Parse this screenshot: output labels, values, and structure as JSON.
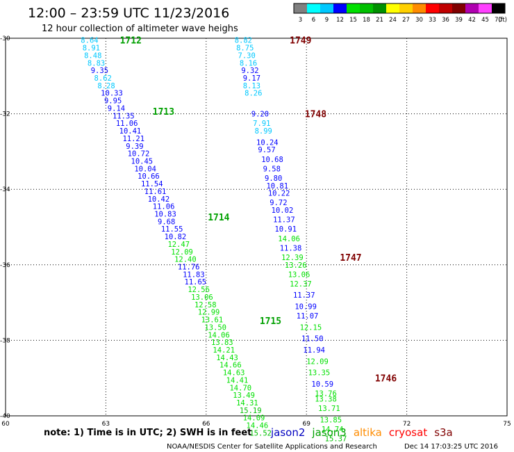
{
  "header": {
    "title": "12:00 – 23:59 UTC 11/23/2016",
    "subtitle": "12 hour collection of altimeter wave heighs"
  },
  "legend": {
    "unit": "(ft)",
    "bins": [
      {
        "label": "3",
        "color": "#808080"
      },
      {
        "label": "6",
        "color": "#00ffff"
      },
      {
        "label": "9",
        "color": "#00c8ff"
      },
      {
        "label": "12",
        "color": "#0000ff"
      },
      {
        "label": "15",
        "color": "#00e000"
      },
      {
        "label": "18",
        "color": "#00c000"
      },
      {
        "label": "21",
        "color": "#009000"
      },
      {
        "label": "24",
        "color": "#ffff00"
      },
      {
        "label": "27",
        "color": "#ffd000"
      },
      {
        "label": "30",
        "color": "#ff8c00"
      },
      {
        "label": "33",
        "color": "#ff0000"
      },
      {
        "label": "36",
        "color": "#c00000"
      },
      {
        "label": "39",
        "color": "#800000"
      },
      {
        "label": "42",
        "color": "#b000b0"
      },
      {
        "label": "45",
        "color": "#ff40ff"
      },
      {
        "label": "70",
        "color": "#000000"
      }
    ]
  },
  "axes": {
    "lat_ticks": [
      "-30",
      "-32",
      "-34",
      "-36",
      "-38",
      "-40"
    ],
    "lon_ticks": [
      "60",
      "63",
      "66",
      "69",
      "72",
      "75"
    ]
  },
  "footer": {
    "note": "note:  1) Time is in UTC;  2) SWH is in feet",
    "satellites": [
      {
        "name": "jason2",
        "color": "#0000c0"
      },
      {
        "name": "jason3",
        "color": "#00a000"
      },
      {
        "name": "altika",
        "color": "#ff8c00"
      },
      {
        "name": "cryosat",
        "color": "#ff0000"
      },
      {
        "name": "s3a",
        "color": "#800000"
      }
    ],
    "credit": "NOAA/NESDIS Center for Satellite Applications and Research",
    "timestamp": "Dec 14 17:03:25 UTC 2016"
  },
  "passes": [
    {
      "time": "1712",
      "color": "#00a000",
      "lat": -30.05,
      "lon": 63.42
    },
    {
      "time": "1713",
      "color": "#00a000",
      "lat": -31.93,
      "lon": 64.4
    },
    {
      "time": "1714",
      "color": "#00a000",
      "lat": -34.73,
      "lon": 66.05
    },
    {
      "time": "1715",
      "color": "#00a000",
      "lat": -37.48,
      "lon": 67.6
    },
    {
      "time": "1749",
      "color": "#800000",
      "lat": -30.05,
      "lon": 68.5
    },
    {
      "time": "1748",
      "color": "#800000",
      "lat": -32.0,
      "lon": 68.95
    },
    {
      "time": "1747",
      "color": "#800000",
      "lat": -35.8,
      "lon": 70.0
    },
    {
      "time": "1746",
      "color": "#800000",
      "lat": -39.0,
      "lon": 71.05
    }
  ],
  "tracks": [
    {
      "id": "track-west",
      "points": [
        {
          "lat": -30.05,
          "lon": 62.25,
          "swh": "8.64"
        },
        {
          "lat": -30.25,
          "lon": 62.3,
          "swh": "8.91"
        },
        {
          "lat": -30.45,
          "lon": 62.35,
          "swh": "8.48"
        },
        {
          "lat": -30.65,
          "lon": 62.45,
          "swh": "8.83"
        },
        {
          "lat": -30.85,
          "lon": 62.55,
          "swh": "9.35"
        },
        {
          "lat": -31.05,
          "lon": 62.65,
          "swh": "8.62"
        },
        {
          "lat": -31.25,
          "lon": 62.75,
          "swh": "8.28"
        },
        {
          "lat": -31.45,
          "lon": 62.85,
          "swh": "10.33"
        },
        {
          "lat": -31.65,
          "lon": 62.95,
          "swh": "9.95"
        },
        {
          "lat": -31.85,
          "lon": 63.05,
          "swh": "9.14"
        },
        {
          "lat": -32.05,
          "lon": 63.2,
          "swh": "11.35"
        },
        {
          "lat": -32.25,
          "lon": 63.3,
          "swh": "11.06"
        },
        {
          "lat": -32.45,
          "lon": 63.4,
          "swh": "10.41"
        },
        {
          "lat": -32.65,
          "lon": 63.5,
          "swh": "11.21"
        },
        {
          "lat": -32.85,
          "lon": 63.6,
          "swh": "9.39"
        },
        {
          "lat": -33.05,
          "lon": 63.65,
          "swh": "10.72"
        },
        {
          "lat": -33.25,
          "lon": 63.75,
          "swh": "10.45"
        },
        {
          "lat": -33.45,
          "lon": 63.85,
          "swh": "10.04"
        },
        {
          "lat": -33.65,
          "lon": 63.95,
          "swh": "10.66"
        },
        {
          "lat": -33.85,
          "lon": 64.05,
          "swh": "11.54"
        },
        {
          "lat": -34.05,
          "lon": 64.15,
          "swh": "11.61"
        },
        {
          "lat": -34.25,
          "lon": 64.25,
          "swh": "10.42"
        },
        {
          "lat": -34.45,
          "lon": 64.4,
          "swh": "11.06"
        },
        {
          "lat": -34.65,
          "lon": 64.45,
          "swh": "10.83"
        },
        {
          "lat": -34.85,
          "lon": 64.55,
          "swh": "9.68"
        },
        {
          "lat": -35.05,
          "lon": 64.65,
          "swh": "11.55"
        },
        {
          "lat": -35.25,
          "lon": 64.75,
          "swh": "10.82"
        },
        {
          "lat": -35.45,
          "lon": 64.85,
          "swh": "12.47"
        },
        {
          "lat": -35.65,
          "lon": 64.95,
          "swh": "12.09"
        },
        {
          "lat": -35.85,
          "lon": 65.05,
          "swh": "12.40"
        },
        {
          "lat": -36.05,
          "lon": 65.15,
          "swh": "11.76"
        },
        {
          "lat": -36.25,
          "lon": 65.3,
          "swh": "11.83"
        },
        {
          "lat": -36.45,
          "lon": 65.35,
          "swh": "11.65"
        },
        {
          "lat": -36.65,
          "lon": 65.45,
          "swh": "12.56"
        },
        {
          "lat": -36.85,
          "lon": 65.55,
          "swh": "13.06"
        },
        {
          "lat": -37.05,
          "lon": 65.65,
          "swh": "12.58"
        },
        {
          "lat": -37.25,
          "lon": 65.75,
          "swh": "12.99"
        },
        {
          "lat": -37.45,
          "lon": 65.85,
          "swh": "13.61"
        },
        {
          "lat": -37.65,
          "lon": 65.95,
          "swh": "13.50"
        },
        {
          "lat": -37.85,
          "lon": 66.05,
          "swh": "14.06"
        },
        {
          "lat": -38.05,
          "lon": 66.15,
          "swh": "13.83"
        },
        {
          "lat": -38.25,
          "lon": 66.2,
          "swh": "14.21"
        },
        {
          "lat": -38.45,
          "lon": 66.3,
          "swh": "14.43"
        },
        {
          "lat": -38.65,
          "lon": 66.4,
          "swh": "14.66"
        },
        {
          "lat": -38.85,
          "lon": 66.5,
          "swh": "14.63"
        },
        {
          "lat": -39.05,
          "lon": 66.6,
          "swh": "14.41"
        },
        {
          "lat": -39.25,
          "lon": 66.7,
          "swh": "14.70"
        },
        {
          "lat": -39.45,
          "lon": 66.8,
          "swh": "13.49"
        },
        {
          "lat": -39.65,
          "lon": 66.9,
          "swh": "14.31"
        },
        {
          "lat": -39.85,
          "lon": 67.0,
          "swh": "15.19"
        },
        {
          "lat": -40.05,
          "lon": 67.1,
          "swh": "14.09"
        },
        {
          "lat": -40.25,
          "lon": 67.2,
          "swh": "14.46"
        },
        {
          "lat": -40.45,
          "lon": 67.3,
          "swh": "15.52"
        }
      ]
    },
    {
      "id": "track-east",
      "points": [
        {
          "lat": -30.05,
          "lon": 66.85,
          "swh": "8.82"
        },
        {
          "lat": -30.25,
          "lon": 66.9,
          "swh": "8.75"
        },
        {
          "lat": -30.45,
          "lon": 66.95,
          "swh": "7.30"
        },
        {
          "lat": -30.65,
          "lon": 67.0,
          "swh": "8.16"
        },
        {
          "lat": -30.85,
          "lon": 67.05,
          "swh": "9.32"
        },
        {
          "lat": -31.05,
          "lon": 67.1,
          "swh": "9.17"
        },
        {
          "lat": -31.25,
          "lon": 67.1,
          "swh": "8.13"
        },
        {
          "lat": -31.45,
          "lon": 67.15,
          "swh": "8.26"
        },
        {
          "lat": -32.0,
          "lon": 67.35,
          "swh": "9.20"
        },
        {
          "lat": -32.25,
          "lon": 67.4,
          "swh": "7.91"
        },
        {
          "lat": -32.45,
          "lon": 67.45,
          "swh": "8.99"
        },
        {
          "lat": -32.75,
          "lon": 67.5,
          "swh": "10.24"
        },
        {
          "lat": -32.95,
          "lon": 67.55,
          "swh": "9.57"
        },
        {
          "lat": -33.2,
          "lon": 67.65,
          "swh": "10.68"
        },
        {
          "lat": -33.45,
          "lon": 67.7,
          "swh": "9.58"
        },
        {
          "lat": -33.7,
          "lon": 67.75,
          "swh": "9.80"
        },
        {
          "lat": -33.9,
          "lon": 67.8,
          "swh": "10.81"
        },
        {
          "lat": -34.1,
          "lon": 67.85,
          "swh": "10.22"
        },
        {
          "lat": -34.35,
          "lon": 67.9,
          "swh": "9.72"
        },
        {
          "lat": -34.55,
          "lon": 67.95,
          "swh": "10.02"
        },
        {
          "lat": -34.8,
          "lon": 68.0,
          "swh": "11.37"
        },
        {
          "lat": -35.05,
          "lon": 68.05,
          "swh": "10.91"
        },
        {
          "lat": -35.3,
          "lon": 68.15,
          "swh": "14.06"
        },
        {
          "lat": -35.55,
          "lon": 68.2,
          "swh": "11.38"
        },
        {
          "lat": -35.8,
          "lon": 68.25,
          "swh": "12.39"
        },
        {
          "lat": -36.0,
          "lon": 68.35,
          "swh": "13.26"
        },
        {
          "lat": -36.25,
          "lon": 68.45,
          "swh": "13.06"
        },
        {
          "lat": -36.5,
          "lon": 68.5,
          "swh": "12.37"
        },
        {
          "lat": -36.8,
          "lon": 68.6,
          "swh": "11.37"
        },
        {
          "lat": -37.1,
          "lon": 68.65,
          "swh": "10.99"
        },
        {
          "lat": -37.35,
          "lon": 68.7,
          "swh": "11.07"
        },
        {
          "lat": -37.65,
          "lon": 68.8,
          "swh": "12.15"
        },
        {
          "lat": -37.95,
          "lon": 68.85,
          "swh": "11.50"
        },
        {
          "lat": -38.25,
          "lon": 68.9,
          "swh": "11.94"
        },
        {
          "lat": -38.55,
          "lon": 69.0,
          "swh": "12.09"
        },
        {
          "lat": -38.85,
          "lon": 69.05,
          "swh": "13.35"
        },
        {
          "lat": -39.15,
          "lon": 69.15,
          "swh": "10.59"
        },
        {
          "lat": -39.4,
          "lon": 69.25,
          "swh": "13.76"
        },
        {
          "lat": -39.55,
          "lon": 69.25,
          "swh": "13.38"
        },
        {
          "lat": -39.8,
          "lon": 69.35,
          "swh": "13.71"
        },
        {
          "lat": -40.1,
          "lon": 69.4,
          "swh": "13.85"
        },
        {
          "lat": -40.35,
          "lon": 69.45,
          "swh": "14.74"
        },
        {
          "lat": -40.6,
          "lon": 69.55,
          "swh": "15.37"
        }
      ]
    }
  ]
}
